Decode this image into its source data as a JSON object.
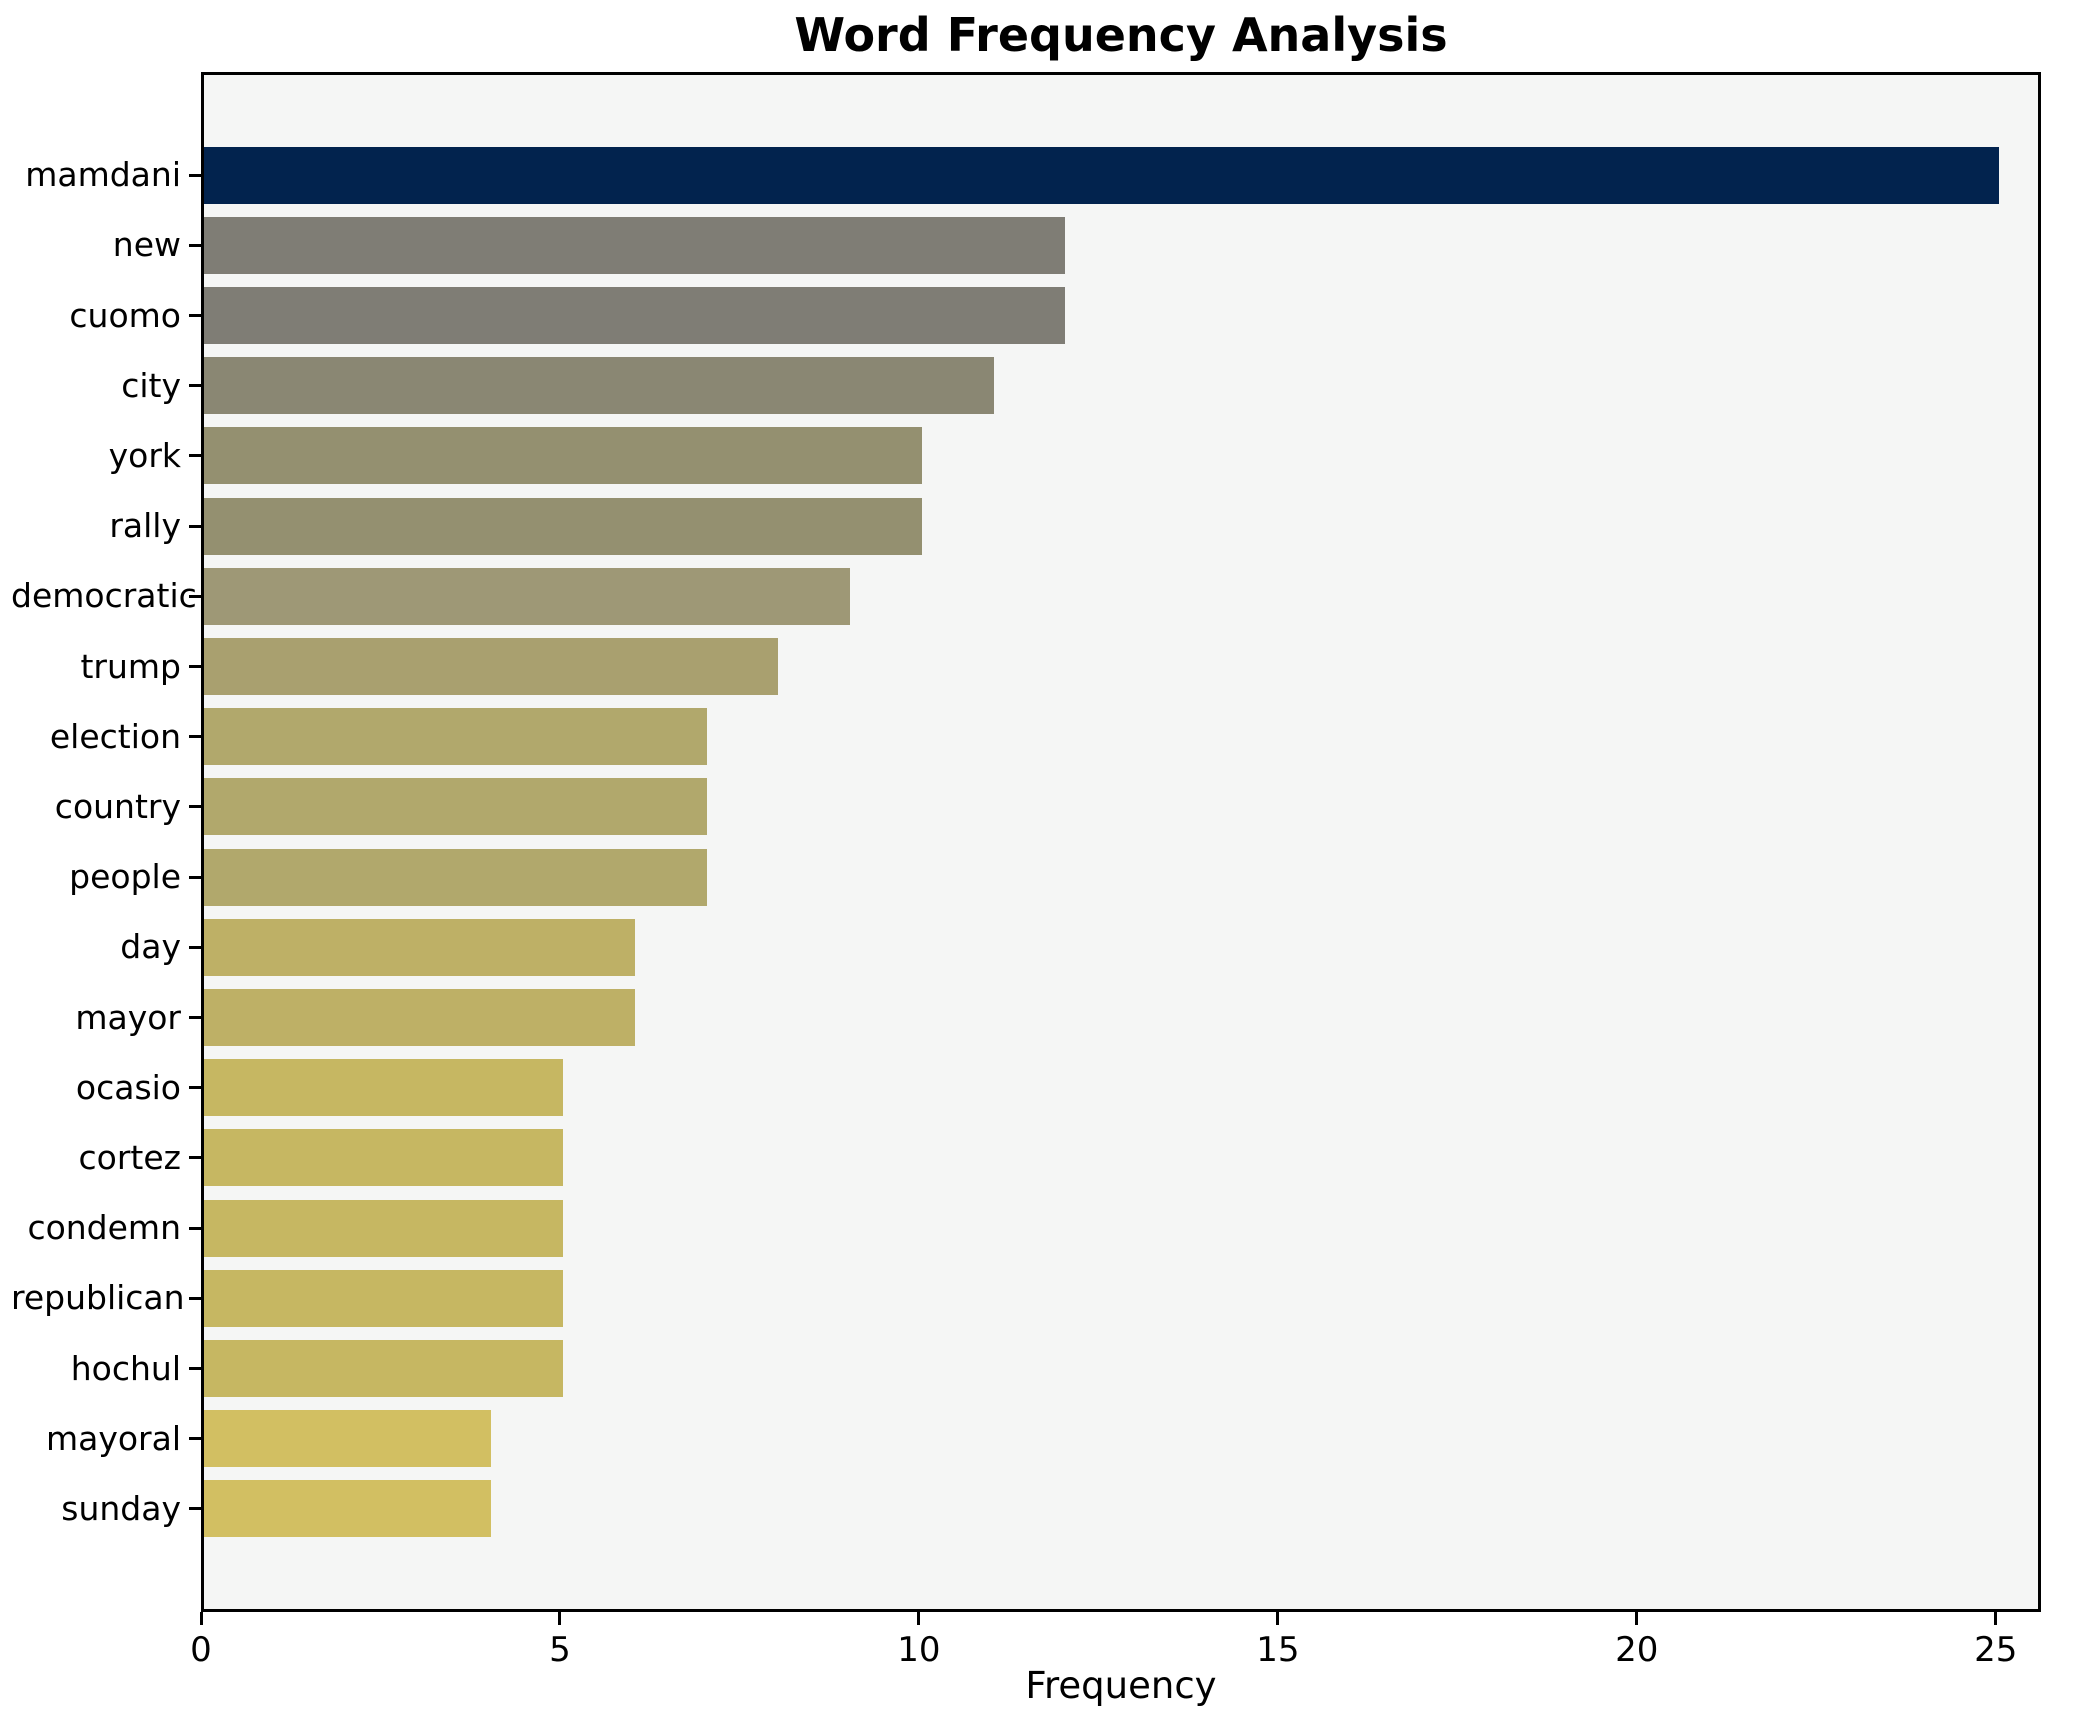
{
  "chart_data": {
    "type": "bar",
    "orientation": "horizontal",
    "title": "Word Frequency Analysis",
    "xlabel": "Frequency",
    "ylabel": "",
    "categories": [
      "mamdani",
      "new",
      "cuomo",
      "city",
      "york",
      "rally",
      "democratic",
      "trump",
      "election",
      "country",
      "people",
      "day",
      "mayor",
      "ocasio",
      "cortez",
      "condemn",
      "republican",
      "hochul",
      "mayoral",
      "sunday"
    ],
    "values": [
      25,
      12,
      12,
      11,
      10,
      10,
      9,
      8,
      7,
      7,
      7,
      6,
      6,
      5,
      5,
      5,
      5,
      5,
      4,
      4
    ],
    "bar_colors": [
      "#02234e",
      "#7f7d75",
      "#7f7d75",
      "#8a8773",
      "#949070",
      "#949070",
      "#9e9876",
      "#a9a06f",
      "#b1a86c",
      "#b1a86c",
      "#b1a86c",
      "#beb066",
      "#beb066",
      "#c6b762",
      "#c6b762",
      "#c6b762",
      "#c6b762",
      "#c6b762",
      "#d2bf62",
      "#d2bf62"
    ],
    "x_ticks": [
      0,
      5,
      10,
      15,
      20,
      25
    ],
    "xlim": [
      0,
      25.63
    ],
    "grid": false,
    "legend_position": "none",
    "plot_bg": "#f5f6f5",
    "figure_bg": "#ffffff",
    "spine_color": "#000000",
    "text_color": "#000000"
  }
}
